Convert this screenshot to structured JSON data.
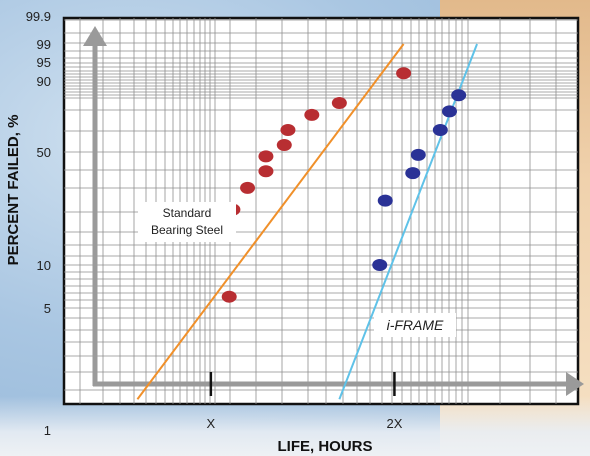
{
  "chart_data": {
    "type": "scatter",
    "scale": "probability",
    "xlabel": "LIFE, HOURS",
    "ylabel": "PERCENT FAILED, %",
    "x_ticks": [
      "X",
      "2X"
    ],
    "y_ticks": [
      "1",
      "5",
      "10",
      "50",
      "90",
      "95",
      "99",
      "99.9"
    ],
    "x_range": [
      0.2,
      3.0
    ],
    "grid": true,
    "series": [
      {
        "name": "Standard Bearing Steel",
        "color": "#b82e32",
        "fit_color": "#f0902a",
        "points": [
          {
            "x": 1.1,
            "y": 6
          },
          {
            "x": 1.12,
            "y": 22
          },
          {
            "x": 1.2,
            "y": 30
          },
          {
            "x": 1.3,
            "y": 38
          },
          {
            "x": 1.3,
            "y": 47
          },
          {
            "x": 1.4,
            "y": 53
          },
          {
            "x": 1.42,
            "y": 60
          },
          {
            "x": 1.55,
            "y": 68
          },
          {
            "x": 1.7,
            "y": 75
          },
          {
            "x": 2.05,
            "y": 92
          }
        ],
        "fit": [
          {
            "x": 0.6,
            "y": 1.5
          },
          {
            "x": 2.05,
            "y": 99
          }
        ]
      },
      {
        "name": "i-FRAME",
        "color": "#2a3296",
        "fit_color": "#5fc2e8",
        "points": [
          {
            "x": 1.92,
            "y": 10
          },
          {
            "x": 1.95,
            "y": 25
          },
          {
            "x": 2.1,
            "y": 37
          },
          {
            "x": 2.13,
            "y": 48
          },
          {
            "x": 2.25,
            "y": 60
          },
          {
            "x": 2.3,
            "y": 70
          },
          {
            "x": 2.35,
            "y": 80
          }
        ],
        "fit": [
          {
            "x": 1.7,
            "y": 1.5
          },
          {
            "x": 2.45,
            "y": 99
          }
        ]
      }
    ],
    "annotations": {
      "standard_line1": "Standard",
      "standard_line2": "Bearing Steel",
      "iframe": "i-FRAME"
    }
  }
}
